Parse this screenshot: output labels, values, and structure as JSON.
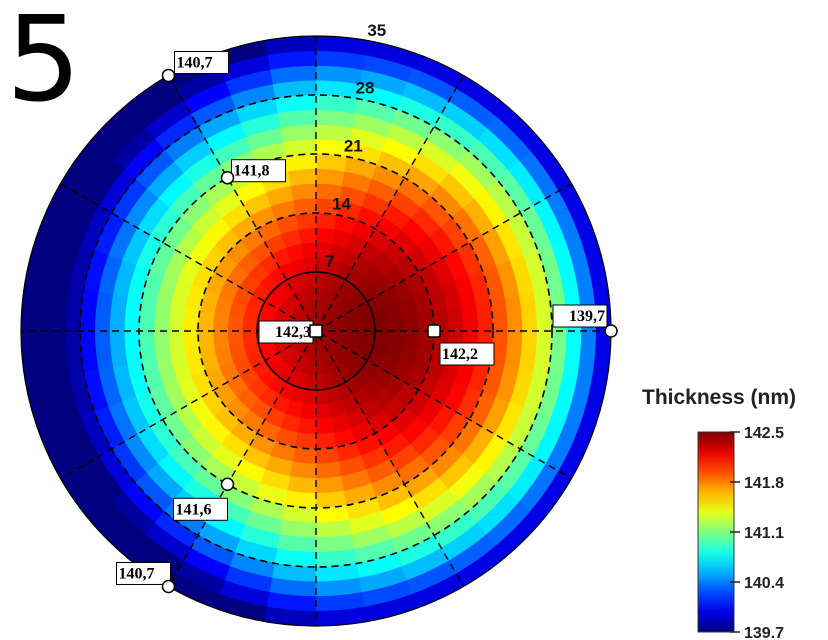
{
  "panel_label": "5",
  "chart_data": {
    "type": "heatmap",
    "subtype": "polar wafer map",
    "title": "",
    "colorbar": {
      "title": "Thickness (nm)",
      "min": 139.7,
      "max": 142.5,
      "ticks": [
        "142.5",
        "141.8",
        "141.1",
        "140.4",
        "139.7"
      ],
      "colormap": "jet"
    },
    "radial_rings": [
      {
        "r": 7,
        "label": "7",
        "style": "solid"
      },
      {
        "r": 14,
        "label": "14",
        "style": "dashed"
      },
      {
        "r": 21,
        "label": "21",
        "style": "dashed"
      },
      {
        "r": 28,
        "label": "28",
        "style": "dashed"
      },
      {
        "r": 35,
        "label": "35",
        "style": "outer"
      }
    ],
    "angular_gridlines_deg": [
      0,
      30,
      60,
      90,
      120,
      150
    ],
    "measurement_points": [
      {
        "r": 0,
        "angle_deg": 0,
        "label": "142,3"
      },
      {
        "r": 14,
        "angle_deg": 0,
        "label": "142,2"
      },
      {
        "r": 35,
        "angle_deg": 0,
        "label": "139,7"
      },
      {
        "r": 21,
        "angle_deg": 120,
        "label": "141,8"
      },
      {
        "r": 21,
        "angle_deg": 240,
        "label": "141,6"
      },
      {
        "r": 35,
        "angle_deg": 120,
        "label": "140,7"
      },
      {
        "r": 35,
        "angle_deg": 240,
        "label": "140,7"
      }
    ],
    "field_model": {
      "peak_value": 142.5,
      "peak_r": 7,
      "peak_angle_deg": 0
    }
  }
}
